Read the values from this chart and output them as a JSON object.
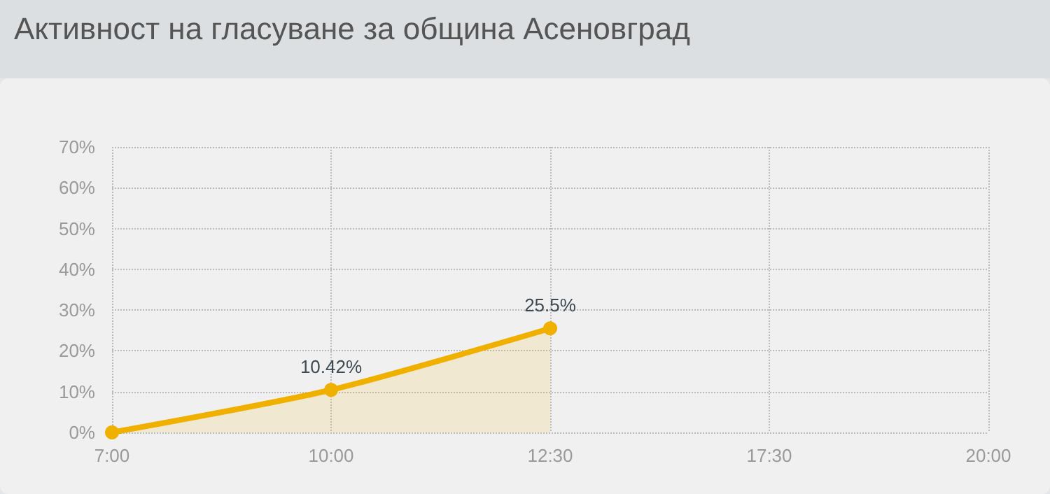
{
  "chart_data": {
    "type": "area",
    "title": "Активност на гласуване за община Асеновград",
    "categories": [
      "7:00",
      "10:00",
      "12:30",
      "17:30",
      "20:00"
    ],
    "series": [
      {
        "color": "#f0b000",
        "values": [
          0,
          10.42,
          25.5,
          null,
          null
        ],
        "value_labels": [
          null,
          "10.42%",
          "25.5%",
          null,
          null
        ]
      }
    ],
    "ylim": [
      0,
      70
    ],
    "yticks": [
      {
        "value": 0,
        "label": "0%"
      },
      {
        "value": 10,
        "label": "10%"
      },
      {
        "value": 20,
        "label": "20%"
      },
      {
        "value": 30,
        "label": "30%"
      },
      {
        "value": 40,
        "label": "40%"
      },
      {
        "value": 50,
        "label": "50%"
      },
      {
        "value": 60,
        "label": "60%"
      },
      {
        "value": 70,
        "label": "70%"
      }
    ],
    "grid": true,
    "marker": "circle",
    "line_style": "solid"
  }
}
